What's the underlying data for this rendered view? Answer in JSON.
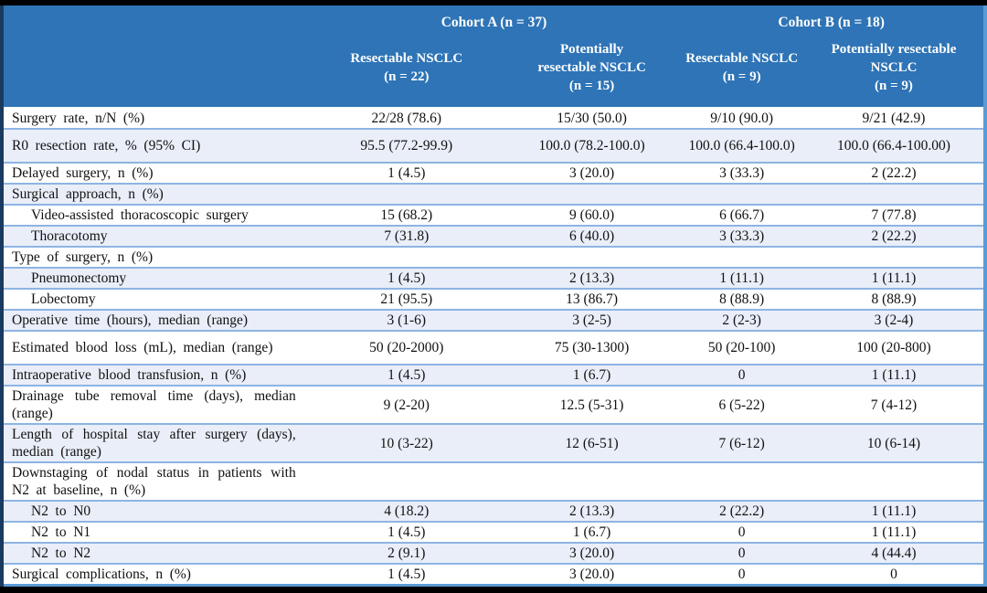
{
  "figure": {
    "title": "Surgery outcomes table, NSCLC cohorts",
    "header": {
      "cohort_a": "Cohort A (n = 37)",
      "cohort_b": "Cohort B (n = 18)",
      "columns": [
        "Resectable NSCLC\n(n = 22)",
        "Potentially\nresectable NSCLC\n(n = 15)",
        "Resectable NSCLC\n(n = 9)",
        "Potentially resectable\nNSCLC\n(n = 9)"
      ]
    },
    "rows": [
      {
        "label": "Surgery rate, n/N (%)",
        "indent": false,
        "tall": false,
        "values": [
          "22/28 (78.6)",
          "15/30 (50.0)",
          "9/10 (90.0)",
          "9/21 (42.9)"
        ]
      },
      {
        "label": "R0 resection rate, % (95% CI)",
        "indent": false,
        "tall": true,
        "values": [
          "95.5 (77.2-99.9)",
          "100.0 (78.2-100.0)",
          "100.0 (66.4-100.0)",
          "100.0 (66.4-100.00)"
        ]
      },
      {
        "label": "Delayed surgery, n (%)",
        "indent": false,
        "tall": false,
        "values": [
          "1 (4.5)",
          "3 (20.0)",
          "3 (33.3)",
          "2 (22.2)"
        ]
      },
      {
        "label": "Surgical approach, n (%)",
        "indent": false,
        "tall": false,
        "values": [
          "",
          "",
          "",
          ""
        ]
      },
      {
        "label": "Video-assisted thoracoscopic surgery",
        "indent": true,
        "tall": false,
        "values": [
          "15 (68.2)",
          "9 (60.0)",
          "6 (66.7)",
          "7 (77.8)"
        ]
      },
      {
        "label": "Thoracotomy",
        "indent": true,
        "tall": false,
        "values": [
          "7 (31.8)",
          "6 (40.0)",
          "3 (33.3)",
          "2 (22.2)"
        ]
      },
      {
        "label": "Type of surgery, n (%)",
        "indent": false,
        "tall": false,
        "values": [
          "",
          "",
          "",
          ""
        ]
      },
      {
        "label": "Pneumonectomy",
        "indent": true,
        "tall": false,
        "values": [
          "1 (4.5)",
          "2 (13.3)",
          "1 (11.1)",
          "1 (11.1)"
        ]
      },
      {
        "label": "Lobectomy",
        "indent": true,
        "tall": false,
        "values": [
          "21 (95.5)",
          "13 (86.7)",
          "8 (88.9)",
          "8 (88.9)"
        ]
      },
      {
        "label": "Operative time (hours), median (range)",
        "indent": false,
        "tall": false,
        "values": [
          "3 (1-6)",
          "3 (2-5)",
          "2 (2-3)",
          "3 (2-4)"
        ]
      },
      {
        "label": "Estimated blood loss (mL), median (range)",
        "indent": false,
        "tall": true,
        "values": [
          "50 (20-2000)",
          "75 (30-1300)",
          "50 (20-100)",
          "100 (20-800)"
        ]
      },
      {
        "label": "Intraoperative blood transfusion, n (%)",
        "indent": false,
        "tall": false,
        "values": [
          "1 (4.5)",
          "1 (6.7)",
          "0",
          "1 (11.1)"
        ]
      },
      {
        "label": "Drainage tube removal time (days), median (range)",
        "indent": false,
        "tall": false,
        "values": [
          "9 (2-20)",
          "12.5 (5-31)",
          "6 (5-22)",
          "7 (4-12)"
        ]
      },
      {
        "label": "Length of hospital stay after surgery (days), median (range)",
        "indent": false,
        "tall": false,
        "values": [
          "10 (3-22)",
          "12 (6-51)",
          "7 (6-12)",
          "10 (6-14)"
        ]
      },
      {
        "label": "Downstaging of nodal status in patients with N2 at baseline, n (%)",
        "indent": false,
        "tall": false,
        "values": [
          "",
          "",
          "",
          ""
        ]
      },
      {
        "label": "N2 to N0",
        "indent": true,
        "tall": false,
        "values": [
          "4 (18.2)",
          "2 (13.3)",
          "2 (22.2)",
          "1 (11.1)"
        ]
      },
      {
        "label": "N2 to N1",
        "indent": true,
        "tall": false,
        "values": [
          "1 (4.5)",
          "1 (6.7)",
          "0",
          "1 (11.1)"
        ]
      },
      {
        "label": "N2 to N2",
        "indent": true,
        "tall": false,
        "values": [
          "2 (9.1)",
          "3 (20.0)",
          "0",
          "4 (44.4)"
        ]
      },
      {
        "label": "Surgical complications, n (%)",
        "indent": false,
        "tall": false,
        "values": [
          "1 (4.5)",
          "3 (20.0)",
          "0",
          "0"
        ]
      }
    ],
    "colors": {
      "header_bg": "#2E74B6",
      "header_text": "#FFFFFF",
      "stripe_bg": "#E9EEF8",
      "row_border": "#8EB4E3",
      "outer_border": "#5B9BD5",
      "left_border": "#1B3A5F",
      "frame_bg": "#000000",
      "body_text": "#111111"
    }
  }
}
